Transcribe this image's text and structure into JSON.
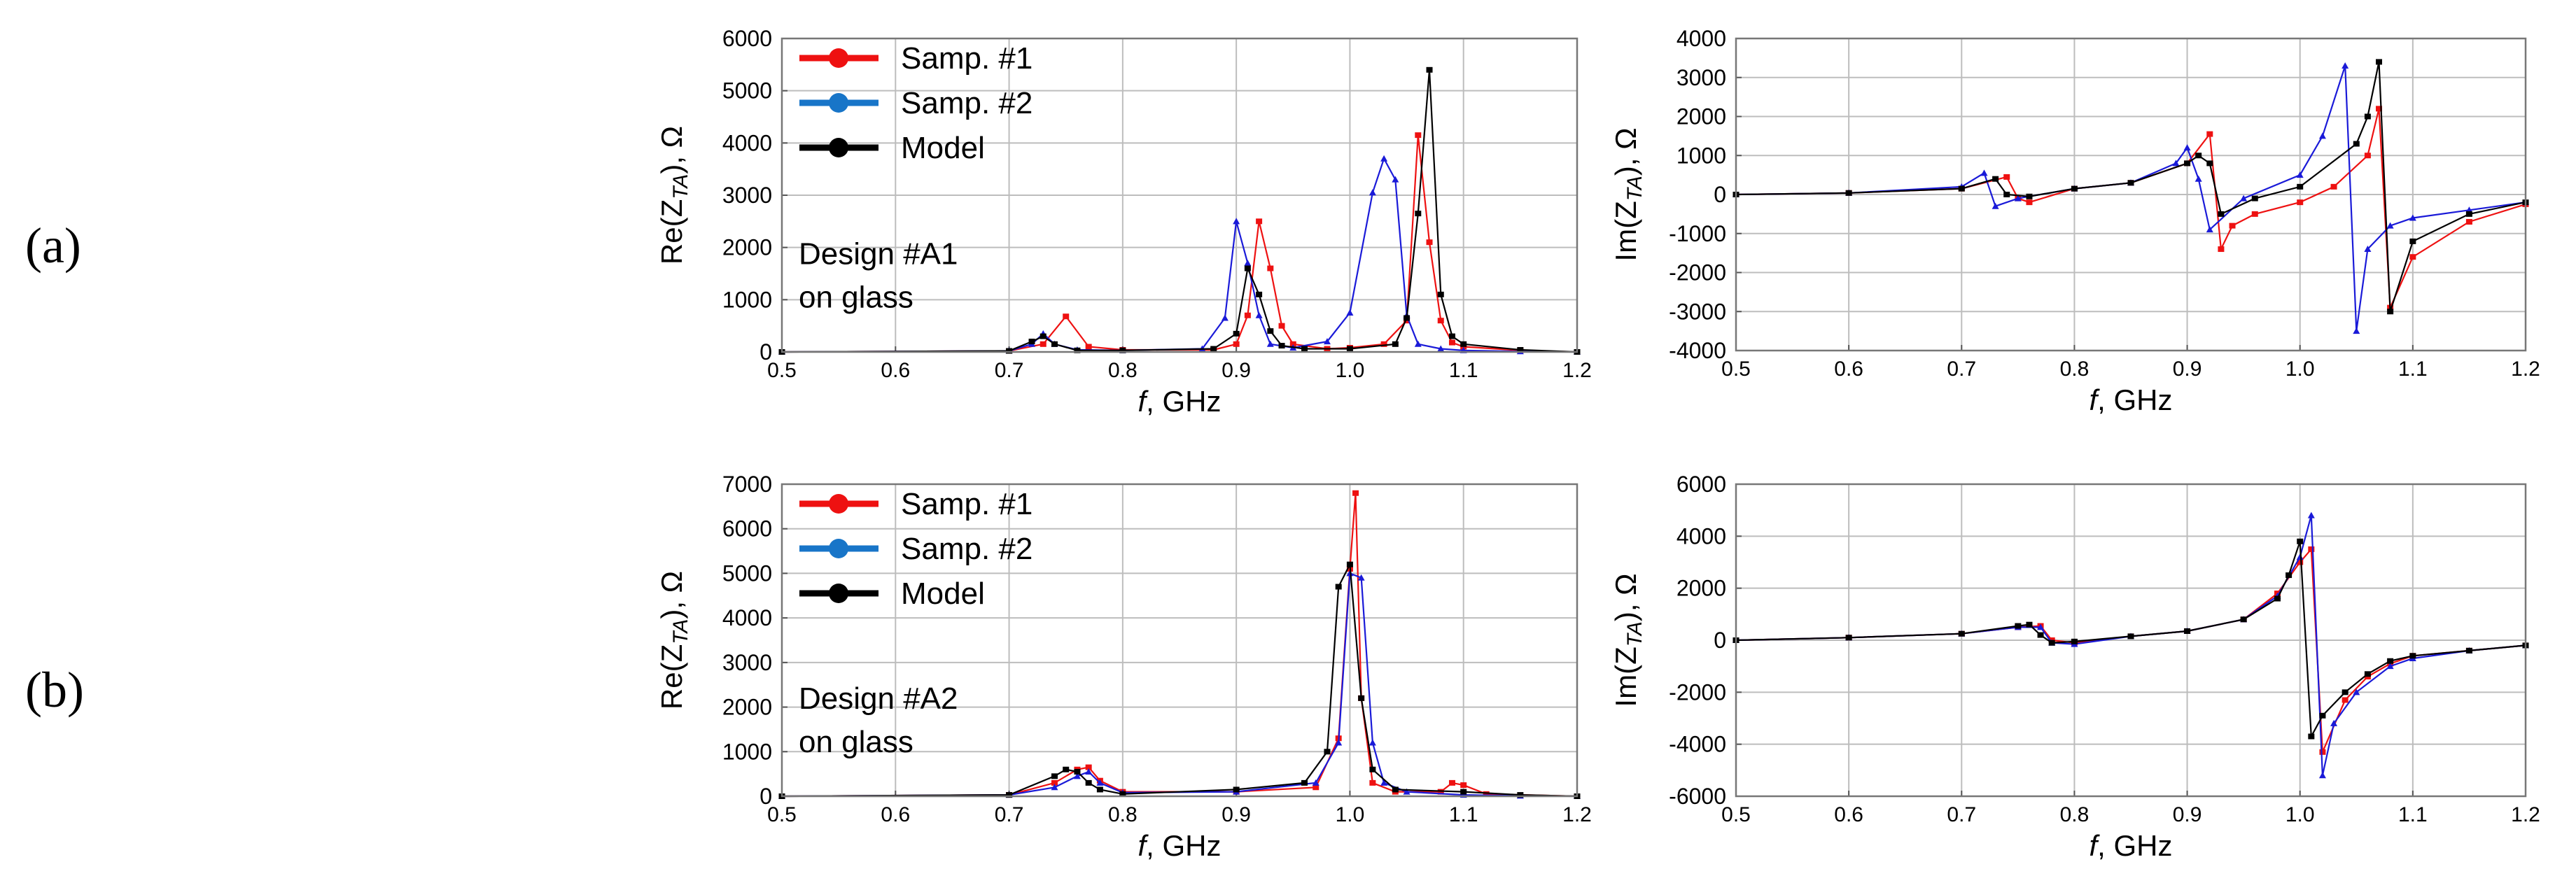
{
  "panel_labels": [
    "(a)",
    "(b)"
  ],
  "colors": {
    "samp1": "#ee1111",
    "samp2": "#1a1ad8",
    "model": "#000000",
    "legend_samp2": "#1875c8",
    "grid": "#bdbdbd"
  },
  "chart_data": [
    {
      "id": "a-re",
      "type": "line",
      "xlabel_prefix": "f",
      "xlabel_suffix": ", GHz",
      "ylabel_prefix": "Re(Z",
      "ylabel_sub": "TA",
      "ylabel_suffix": "), Ω",
      "xlim": [
        0.5,
        1.2
      ],
      "ylim": [
        0,
        6000
      ],
      "xticks": [
        0.5,
        0.6,
        0.7,
        0.8,
        0.9,
        1.0,
        1.1,
        1.2
      ],
      "xtick_labels": [
        "0.5",
        "0.6",
        "0.7",
        "0.8",
        "0.9",
        "1.0",
        "1.1",
        "1.2"
      ],
      "yticks": [
        0,
        1000,
        2000,
        3000,
        4000,
        5000,
        6000
      ],
      "ytick_labels": [
        "0",
        "1000",
        "2000",
        "3000",
        "4000",
        "5000",
        "6000"
      ],
      "legend": [
        "Samp. #1",
        "Samp. #2",
        "Model"
      ],
      "annotation": [
        "Design #A1",
        "on glass"
      ],
      "series": [
        {
          "name": "Samp. #1",
          "x": [
            0.5,
            0.7,
            0.73,
            0.75,
            0.77,
            0.8,
            0.88,
            0.9,
            0.91,
            0.92,
            0.93,
            0.94,
            0.95,
            0.98,
            1.0,
            1.03,
            1.05,
            1.06,
            1.07,
            1.08,
            1.09,
            1.1,
            1.15,
            1.2
          ],
          "y": [
            0,
            20,
            150,
            680,
            100,
            40,
            40,
            150,
            700,
            2500,
            1600,
            500,
            150,
            60,
            80,
            150,
            600,
            4150,
            2100,
            600,
            180,
            100,
            30,
            0
          ]
        },
        {
          "name": "Samp. #2",
          "x": [
            0.5,
            0.7,
            0.72,
            0.73,
            0.74,
            0.76,
            0.8,
            0.87,
            0.89,
            0.9,
            0.91,
            0.92,
            0.93,
            0.95,
            0.98,
            1.0,
            1.02,
            1.03,
            1.04,
            1.05,
            1.06,
            1.08,
            1.1,
            1.15,
            1.2
          ],
          "y": [
            0,
            20,
            150,
            350,
            150,
            40,
            30,
            60,
            650,
            2500,
            1700,
            700,
            150,
            80,
            200,
            750,
            3050,
            3700,
            3300,
            700,
            150,
            60,
            30,
            10,
            0
          ]
        },
        {
          "name": "Model",
          "x": [
            0.5,
            0.7,
            0.72,
            0.73,
            0.74,
            0.76,
            0.8,
            0.88,
            0.9,
            0.91,
            0.92,
            0.93,
            0.94,
            0.96,
            1.0,
            1.04,
            1.05,
            1.06,
            1.07,
            1.08,
            1.09,
            1.1,
            1.15,
            1.2
          ],
          "y": [
            0,
            20,
            200,
            300,
            150,
            30,
            30,
            60,
            350,
            1600,
            1100,
            400,
            120,
            60,
            60,
            150,
            650,
            2650,
            5400,
            1100,
            300,
            150,
            40,
            0
          ]
        }
      ]
    },
    {
      "id": "a-im",
      "type": "line",
      "xlabel_prefix": "f",
      "xlabel_suffix": ", GHz",
      "ylabel_prefix": "Im(Z",
      "ylabel_sub": "TA",
      "ylabel_suffix": "), Ω",
      "xlim": [
        0.5,
        1.2
      ],
      "ylim": [
        -4000,
        4000
      ],
      "xticks": [
        0.5,
        0.6,
        0.7,
        0.8,
        0.9,
        1.0,
        1.1,
        1.2
      ],
      "xtick_labels": [
        "0.5",
        "0.6",
        "0.7",
        "0.8",
        "0.9",
        "1.0",
        "1.1",
        "1.2"
      ],
      "yticks": [
        -4000,
        -3000,
        -2000,
        -1000,
        0,
        1000,
        2000,
        3000,
        4000
      ],
      "ytick_labels": [
        "-4000",
        "-3000",
        "-2000",
        "-1000",
        "0",
        "1000",
        "2000",
        "3000",
        "4000"
      ],
      "series": [
        {
          "name": "Samp. #1",
          "x": [
            0.5,
            0.6,
            0.7,
            0.74,
            0.75,
            0.76,
            0.8,
            0.85,
            0.9,
            0.92,
            0.93,
            0.94,
            0.96,
            1.0,
            1.03,
            1.06,
            1.07,
            1.08,
            1.1,
            1.15,
            1.2
          ],
          "y": [
            0,
            40,
            150,
            450,
            -100,
            -200,
            150,
            300,
            800,
            1550,
            -1400,
            -800,
            -500,
            -200,
            200,
            1000,
            2200,
            -2900,
            -1600,
            -700,
            -250
          ]
        },
        {
          "name": "Samp. #2",
          "x": [
            0.5,
            0.6,
            0.7,
            0.72,
            0.73,
            0.75,
            0.8,
            0.85,
            0.89,
            0.9,
            0.91,
            0.92,
            0.95,
            1.0,
            1.02,
            1.04,
            1.05,
            1.06,
            1.08,
            1.1,
            1.15,
            1.2
          ],
          "y": [
            0,
            40,
            200,
            550,
            -300,
            -100,
            150,
            300,
            800,
            1200,
            400,
            -900,
            -100,
            500,
            1500,
            3300,
            -3500,
            -1400,
            -800,
            -600,
            -400,
            -200
          ]
        },
        {
          "name": "Model",
          "x": [
            0.5,
            0.6,
            0.7,
            0.73,
            0.74,
            0.76,
            0.8,
            0.85,
            0.9,
            0.91,
            0.92,
            0.93,
            0.96,
            1.0,
            1.05,
            1.06,
            1.07,
            1.08,
            1.1,
            1.15,
            1.2
          ],
          "y": [
            0,
            40,
            150,
            400,
            0,
            -50,
            150,
            300,
            800,
            1000,
            800,
            -500,
            -100,
            200,
            1300,
            2000,
            3400,
            -3000,
            -1200,
            -500,
            -200
          ]
        }
      ]
    },
    {
      "id": "b-re",
      "type": "line",
      "xlabel_prefix": "f",
      "xlabel_suffix": ", GHz",
      "ylabel_prefix": "Re(Z",
      "ylabel_sub": "TA",
      "ylabel_suffix": "), Ω",
      "xlim": [
        0.5,
        1.2
      ],
      "ylim": [
        0,
        7000
      ],
      "xticks": [
        0.5,
        0.6,
        0.7,
        0.8,
        0.9,
        1.0,
        1.1,
        1.2
      ],
      "xtick_labels": [
        "0.5",
        "0.6",
        "0.7",
        "0.8",
        "0.9",
        "1.0",
        "1.1",
        "1.2"
      ],
      "yticks": [
        0,
        1000,
        2000,
        3000,
        4000,
        5000,
        6000,
        7000
      ],
      "ytick_labels": [
        "0",
        "1000",
        "2000",
        "3000",
        "4000",
        "5000",
        "6000",
        "7000"
      ],
      "legend": [
        "Samp. #1",
        "Samp. #2",
        "Model"
      ],
      "annotation": [
        "Design #A2",
        "on glass"
      ],
      "series": [
        {
          "name": "Samp. #1",
          "x": [
            0.5,
            0.7,
            0.74,
            0.76,
            0.77,
            0.78,
            0.8,
            0.9,
            0.97,
            0.99,
            1.0,
            1.005,
            1.01,
            1.02,
            1.04,
            1.08,
            1.09,
            1.1,
            1.12,
            1.2
          ],
          "y": [
            0,
            30,
            300,
            600,
            650,
            350,
            100,
            100,
            200,
            1300,
            5100,
            6800,
            2200,
            300,
            100,
            100,
            300,
            250,
            50,
            0
          ]
        },
        {
          "name": "Samp. #2",
          "x": [
            0.5,
            0.7,
            0.74,
            0.76,
            0.77,
            0.78,
            0.8,
            0.9,
            0.97,
            0.99,
            1.0,
            1.01,
            1.02,
            1.03,
            1.05,
            1.1,
            1.15,
            1.2
          ],
          "y": [
            0,
            30,
            200,
            450,
            550,
            300,
            80,
            100,
            300,
            1200,
            5000,
            4900,
            1200,
            300,
            100,
            30,
            10,
            0
          ]
        },
        {
          "name": "Model",
          "x": [
            0.5,
            0.7,
            0.74,
            0.75,
            0.76,
            0.77,
            0.78,
            0.8,
            0.9,
            0.96,
            0.98,
            0.99,
            1.0,
            1.01,
            1.02,
            1.04,
            1.1,
            1.15,
            1.2
          ],
          "y": [
            0,
            30,
            450,
            600,
            550,
            300,
            150,
            50,
            150,
            300,
            1000,
            4700,
            5200,
            2200,
            600,
            150,
            100,
            30,
            0
          ]
        }
      ]
    },
    {
      "id": "b-im",
      "type": "line",
      "xlabel_prefix": "f",
      "xlabel_suffix": ", GHz",
      "ylabel_prefix": "Im(Z",
      "ylabel_sub": "TA",
      "ylabel_suffix": "), Ω",
      "xlim": [
        0.5,
        1.2
      ],
      "ylim": [
        -6000,
        6000
      ],
      "xticks": [
        0.5,
        0.6,
        0.7,
        0.8,
        0.9,
        1.0,
        1.1,
        1.2
      ],
      "xtick_labels": [
        "0.5",
        "0.6",
        "0.7",
        "0.8",
        "0.9",
        "1.0",
        "1.1",
        "1.2"
      ],
      "yticks": [
        -6000,
        -4000,
        -2000,
        0,
        2000,
        4000,
        6000
      ],
      "ytick_labels": [
        "-6000",
        "-4000",
        "-2000",
        "0",
        "2000",
        "4000",
        "6000"
      ],
      "series": [
        {
          "name": "Samp. #1",
          "x": [
            0.5,
            0.6,
            0.7,
            0.75,
            0.77,
            0.78,
            0.8,
            0.85,
            0.9,
            0.95,
            0.98,
            1.0,
            1.01,
            1.02,
            1.04,
            1.06,
            1.08,
            1.1,
            1.15,
            1.2
          ],
          "y": [
            0,
            100,
            250,
            500,
            550,
            0,
            -100,
            150,
            350,
            800,
            1800,
            3000,
            3500,
            -4300,
            -2300,
            -1400,
            -900,
            -600,
            -400,
            -200
          ]
        },
        {
          "name": "Samp. #2",
          "x": [
            0.5,
            0.6,
            0.7,
            0.75,
            0.77,
            0.78,
            0.8,
            0.85,
            0.9,
            0.95,
            0.98,
            1.0,
            1.01,
            1.02,
            1.03,
            1.05,
            1.08,
            1.1,
            1.15,
            1.2
          ],
          "y": [
            0,
            100,
            250,
            500,
            500,
            -100,
            -150,
            150,
            350,
            800,
            1700,
            3200,
            4800,
            -5200,
            -3200,
            -2000,
            -1000,
            -700,
            -400,
            -200
          ]
        },
        {
          "name": "Model",
          "x": [
            0.5,
            0.6,
            0.7,
            0.75,
            0.76,
            0.77,
            0.78,
            0.8,
            0.85,
            0.9,
            0.95,
            0.98,
            0.99,
            1.0,
            1.01,
            1.02,
            1.04,
            1.06,
            1.08,
            1.1,
            1.15,
            1.2
          ],
          "y": [
            0,
            100,
            250,
            550,
            600,
            200,
            -100,
            -50,
            150,
            350,
            800,
            1600,
            2500,
            3800,
            -3700,
            -2900,
            -2000,
            -1300,
            -800,
            -600,
            -400,
            -200
          ]
        }
      ]
    }
  ]
}
